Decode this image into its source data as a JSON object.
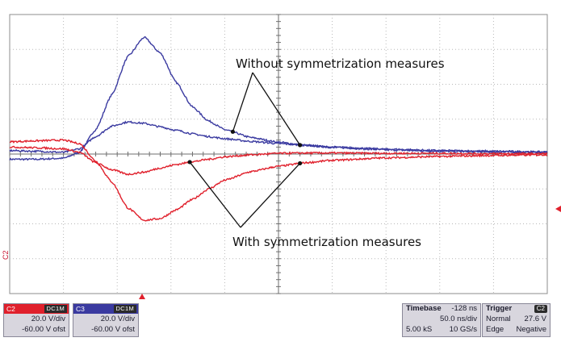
{
  "chart_data": {
    "type": "line",
    "title": "",
    "xlabel": "",
    "ylabel": "",
    "grid": true,
    "grid_divisions": {
      "x": 10,
      "y": 8
    },
    "xlim": [
      0,
      10
    ],
    "ylim": [
      -4,
      4
    ],
    "annotations": [
      {
        "text": "Without symmetrization measures",
        "targets": [
          "C3 upper trace",
          "C3 lower trace"
        ]
      },
      {
        "text": "With symmetrization measures",
        "targets": [
          "C2 upper trace",
          "C2 lower trace"
        ]
      }
    ],
    "series": [
      {
        "channel": "C3",
        "color": "#3a3aa0",
        "x": [
          0,
          0.5,
          1.0,
          1.3,
          1.6,
          1.9,
          2.2,
          2.5,
          2.8,
          3.1,
          3.4,
          3.7,
          4.0,
          4.5,
          5.0,
          5.5,
          6.0,
          7.0,
          8.0,
          9.0,
          10.0
        ],
        "y": [
          -0.15,
          -0.15,
          -0.12,
          0.05,
          0.7,
          1.7,
          2.8,
          3.35,
          2.9,
          2.05,
          1.35,
          0.95,
          0.7,
          0.47,
          0.34,
          0.25,
          0.19,
          0.12,
          0.08,
          0.06,
          0.05
        ]
      },
      {
        "channel": "C3",
        "color": "#3a3aa0",
        "x": [
          0,
          0.5,
          1.0,
          1.3,
          1.6,
          1.9,
          2.2,
          2.5,
          2.8,
          3.1,
          3.4,
          3.7,
          4.0,
          4.5,
          5.0,
          5.5,
          6.0,
          7.0,
          8.0,
          9.0,
          10.0
        ],
        "y": [
          0.1,
          0.08,
          0.05,
          0.15,
          0.5,
          0.8,
          0.92,
          0.88,
          0.78,
          0.68,
          0.58,
          0.5,
          0.44,
          0.36,
          0.3,
          0.25,
          0.2,
          0.14,
          0.1,
          0.08,
          0.06
        ]
      },
      {
        "channel": "C2",
        "color": "#e0202c",
        "x": [
          0,
          0.5,
          1.0,
          1.3,
          1.6,
          1.9,
          2.2,
          2.5,
          2.8,
          3.1,
          3.4,
          3.7,
          4.0,
          4.5,
          5.0,
          5.5,
          6.0,
          7.0,
          8.0,
          9.0,
          10.0
        ],
        "y": [
          0.35,
          0.38,
          0.4,
          0.3,
          -0.2,
          -0.8,
          -1.55,
          -1.9,
          -1.85,
          -1.6,
          -1.3,
          -1.0,
          -0.75,
          -0.5,
          -0.35,
          -0.25,
          -0.18,
          -0.11,
          -0.07,
          -0.04,
          -0.02
        ]
      },
      {
        "channel": "C2",
        "color": "#e0202c",
        "x": [
          0,
          0.5,
          1.0,
          1.3,
          1.6,
          1.9,
          2.2,
          2.5,
          2.8,
          3.1,
          3.4,
          3.7,
          4.0,
          4.5,
          5.0,
          5.5,
          6.0,
          7.0,
          8.0,
          9.0,
          10.0
        ],
        "y": [
          0.2,
          0.18,
          0.15,
          0.05,
          -0.25,
          -0.45,
          -0.58,
          -0.52,
          -0.4,
          -0.3,
          -0.22,
          -0.15,
          -0.08,
          -0.02,
          0.02,
          0.03,
          0.03,
          0.02,
          0.02,
          0.01,
          0.01
        ]
      }
    ],
    "channels": [
      {
        "id": "C2",
        "coupling": "DC1M",
        "scale": "20.0 V/div",
        "offset": "-60.00 V ofst",
        "color": "#e0202c"
      },
      {
        "id": "C3",
        "coupling": "DC1M",
        "scale": "20.0 V/div",
        "offset": "-60.00 V ofst",
        "color": "#3a3aa0"
      }
    ],
    "timebase": {
      "label": "Timebase",
      "delay": "-128 ns",
      "scale": "50.0 ns/div",
      "samples": "5.00 kS",
      "rate": "10 GS/s"
    },
    "trigger": {
      "label": "Trigger",
      "source": "C2",
      "mode": "Normal",
      "level": "27.6 V",
      "type": "Edge",
      "slope": "Negative"
    },
    "side_label": "C2"
  }
}
